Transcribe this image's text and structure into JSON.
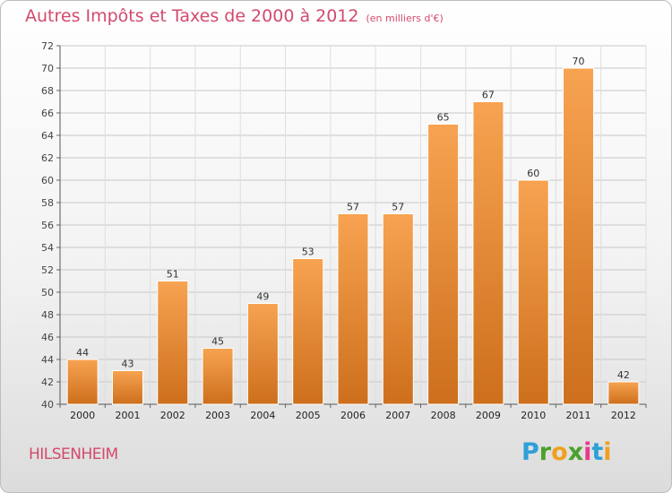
{
  "header": {
    "title": "Autres Impôts et Taxes de 2000 à 2012",
    "unit": "(en milliers d'€)"
  },
  "commune": "HILSENHEIM",
  "logo": {
    "letters": [
      "P",
      "r",
      "o",
      "x",
      "i",
      "t",
      "i"
    ],
    "colors": [
      "#2f9fd8",
      "#4aa02c",
      "#f0a020",
      "#4aa02c",
      "#e83a8c",
      "#2f9fd8",
      "#f0a020"
    ]
  },
  "colors": {
    "bar_top": "#f7a351",
    "bar_bottom": "#cd6f1c",
    "bar_edge": "#ffffff",
    "title": "#d24a6c",
    "grid": "#c8c8c8"
  },
  "chart_data": {
    "type": "bar",
    "title": "Autres Impôts et Taxes de 2000 à 2012",
    "subtitle": "(en milliers d'€)",
    "categories": [
      "2000",
      "2001",
      "2002",
      "2003",
      "2004",
      "2005",
      "2006",
      "2007",
      "2008",
      "2009",
      "2010",
      "2011",
      "2012"
    ],
    "values": [
      44,
      43,
      51,
      45,
      49,
      53,
      57,
      57,
      65,
      67,
      60,
      70,
      42
    ],
    "xlabel": "",
    "ylabel": "",
    "ylim": [
      40,
      72
    ],
    "yticks": [
      40,
      42,
      44,
      46,
      48,
      50,
      52,
      54,
      56,
      58,
      60,
      62,
      64,
      66,
      68,
      70,
      72
    ],
    "grid": true,
    "data_labels": true
  }
}
